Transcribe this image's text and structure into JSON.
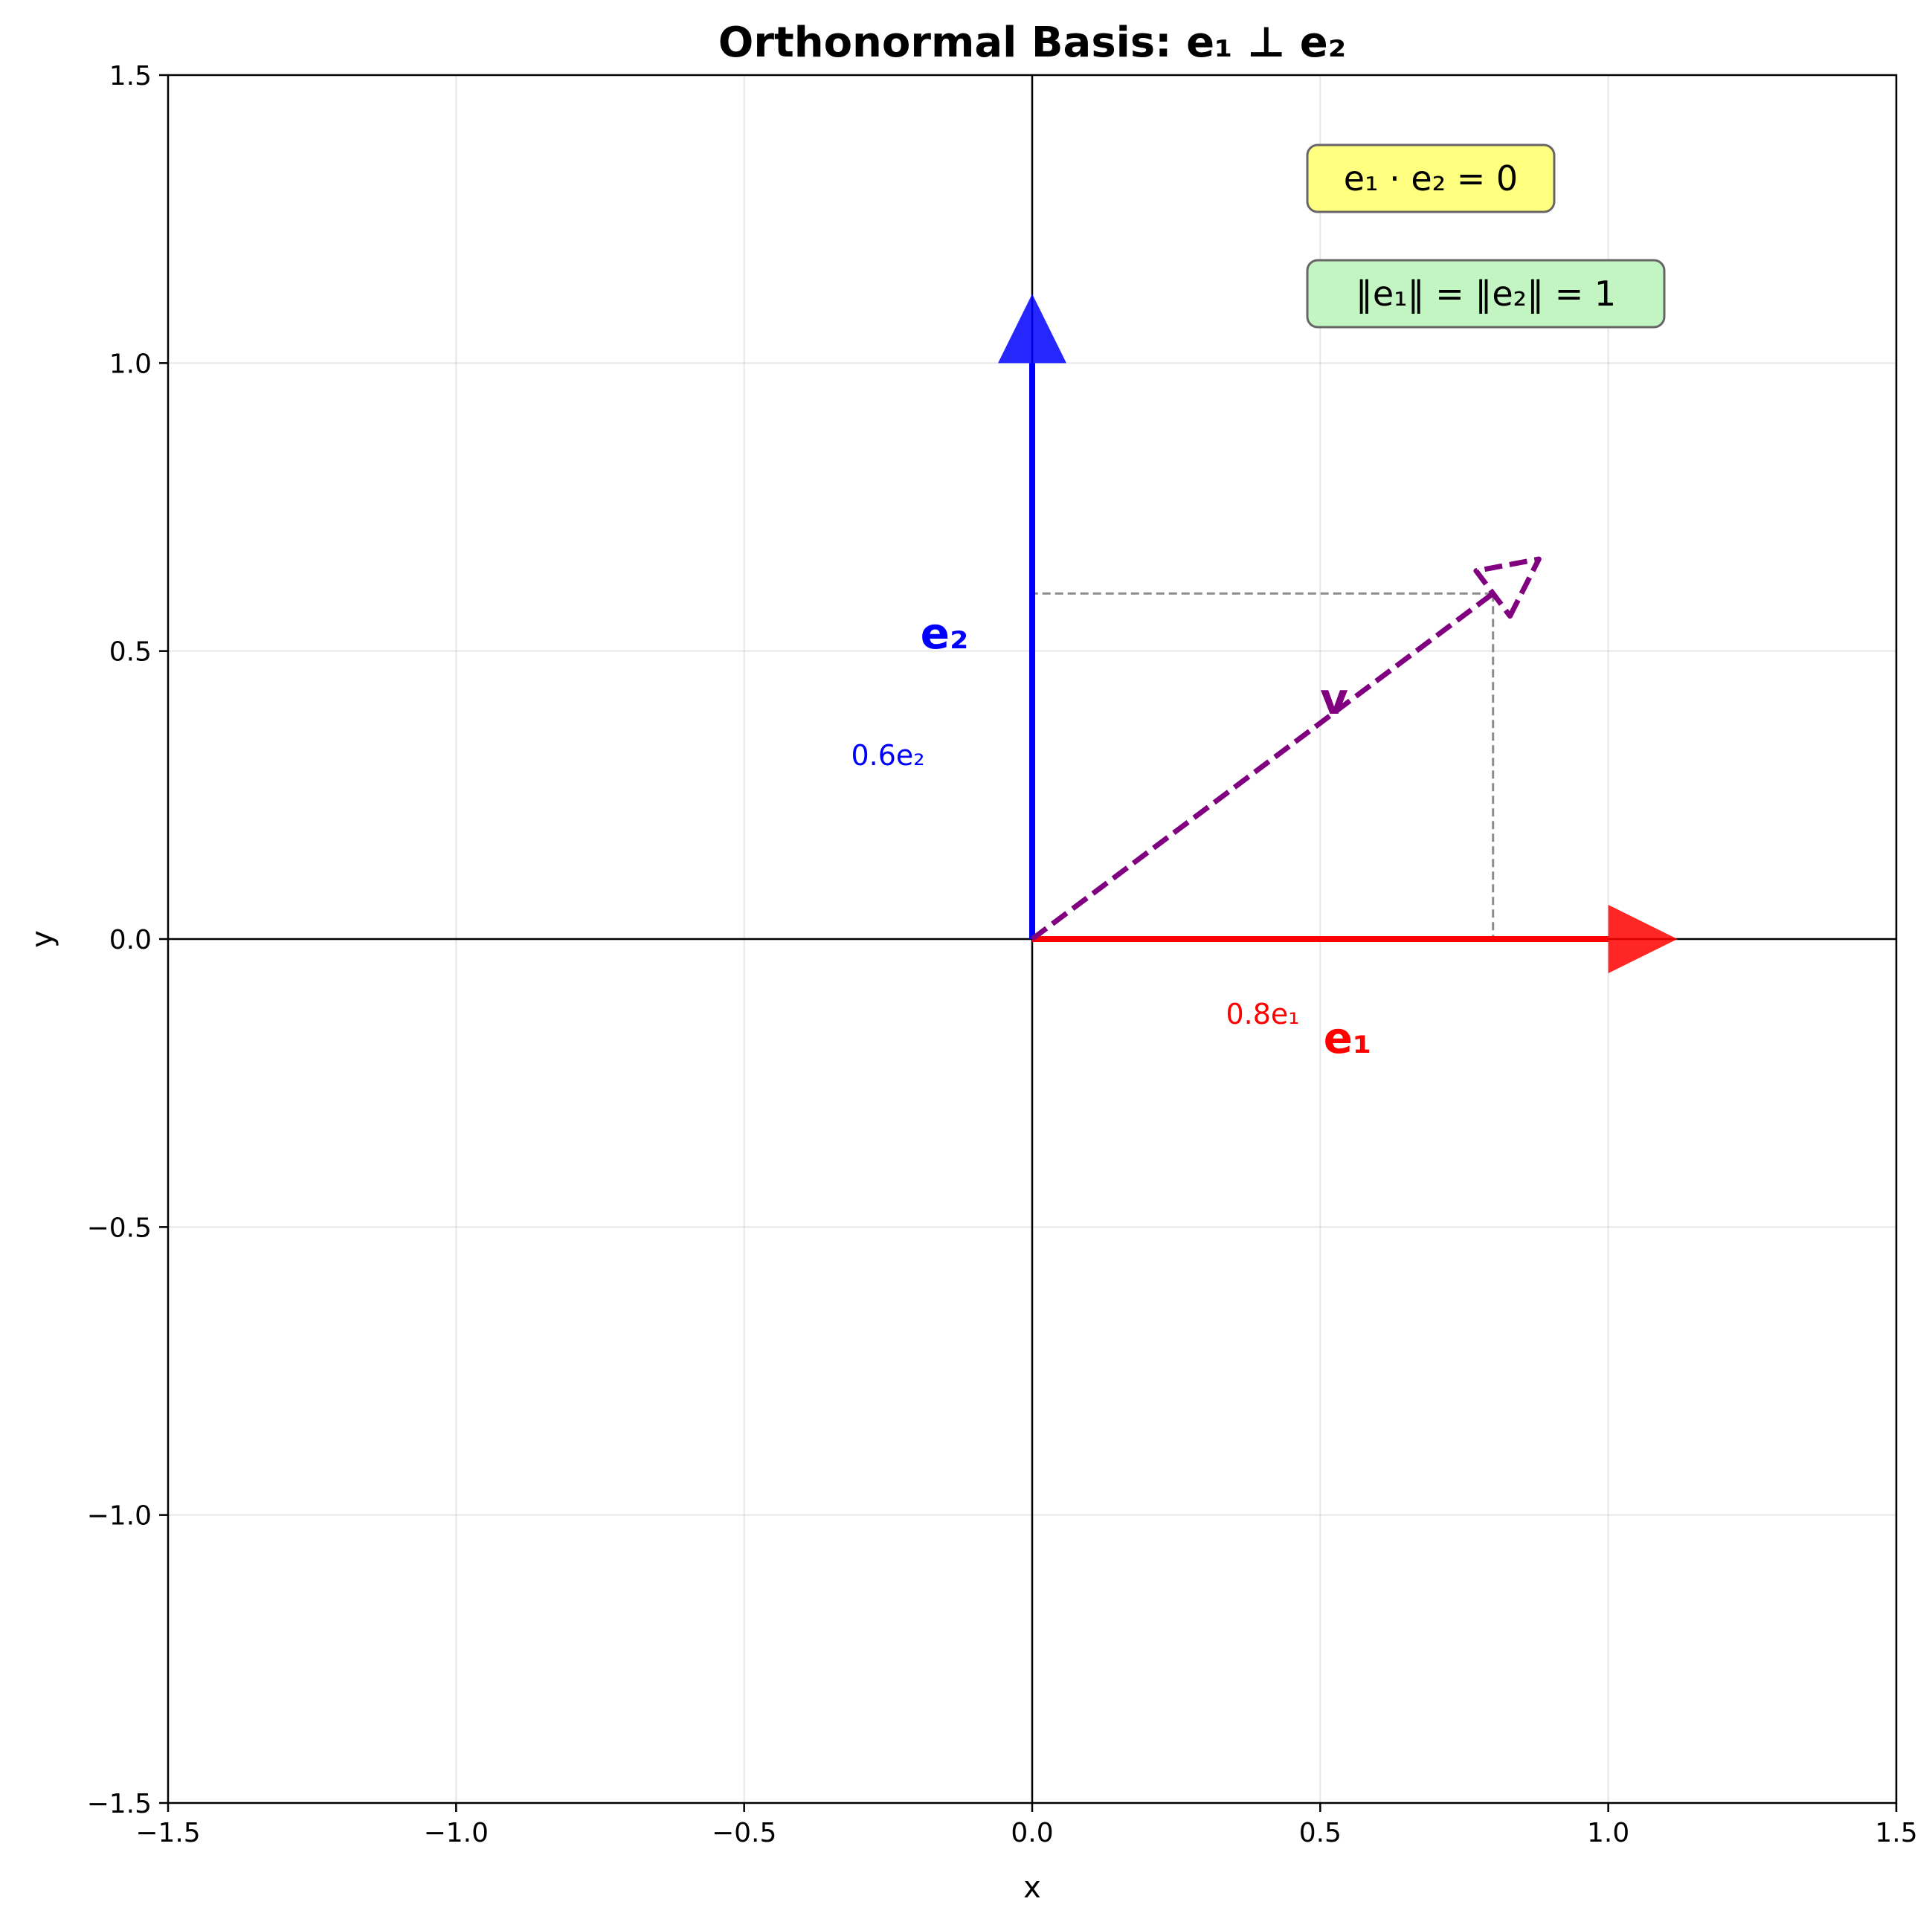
{
  "chart_data": {
    "type": "scatter",
    "title": "Orthonormal Basis: e₁ ⊥ e₂",
    "xlabel": "x",
    "ylabel": "y",
    "xlim": [
      -1.5,
      1.5
    ],
    "ylim": [
      -1.5,
      1.5
    ],
    "grid": true,
    "x_ticks": [
      -1.5,
      -1.0,
      -0.5,
      0.0,
      0.5,
      1.0,
      1.5
    ],
    "y_ticks": [
      -1.5,
      -1.0,
      -0.5,
      0.0,
      0.5,
      1.0,
      1.5
    ],
    "x_tick_labels": [
      "−1.5",
      "−1.0",
      "−0.5",
      "0.0",
      "0.5",
      "1.0",
      "1.5"
    ],
    "y_tick_labels": [
      "−1.5",
      "−1.0",
      "−0.5",
      "0.0",
      "0.5",
      "1.0",
      "1.5"
    ],
    "vectors": [
      {
        "label": "e₁",
        "from": [
          0,
          0
        ],
        "to": [
          1,
          0
        ],
        "color": "#ff0000",
        "style": "solid"
      },
      {
        "label": "e₂",
        "from": [
          0,
          0
        ],
        "to": [
          0,
          1
        ],
        "color": "#0000ff",
        "style": "solid"
      },
      {
        "label": "v",
        "from": [
          0,
          0
        ],
        "to": [
          0.8,
          0.6
        ],
        "color": "#800080",
        "style": "dashed"
      }
    ],
    "projection_lines": [
      {
        "from": [
          0.8,
          0.6
        ],
        "to": [
          0.8,
          0
        ],
        "color": "#808080"
      },
      {
        "from": [
          0.8,
          0.6
        ],
        "to": [
          0,
          0.6
        ],
        "color": "#808080"
      }
    ],
    "component_labels": [
      {
        "text": "0.8e₁",
        "color": "#ff0000"
      },
      {
        "text": "0.6e₂",
        "color": "#0000ff"
      }
    ],
    "annotations": [
      {
        "text": "e₁ · e₂ = 0",
        "background": "#ffff80"
      },
      {
        "text": "‖e₁‖ = ‖e₂‖ = 1",
        "background": "#c2f5c2"
      }
    ]
  }
}
